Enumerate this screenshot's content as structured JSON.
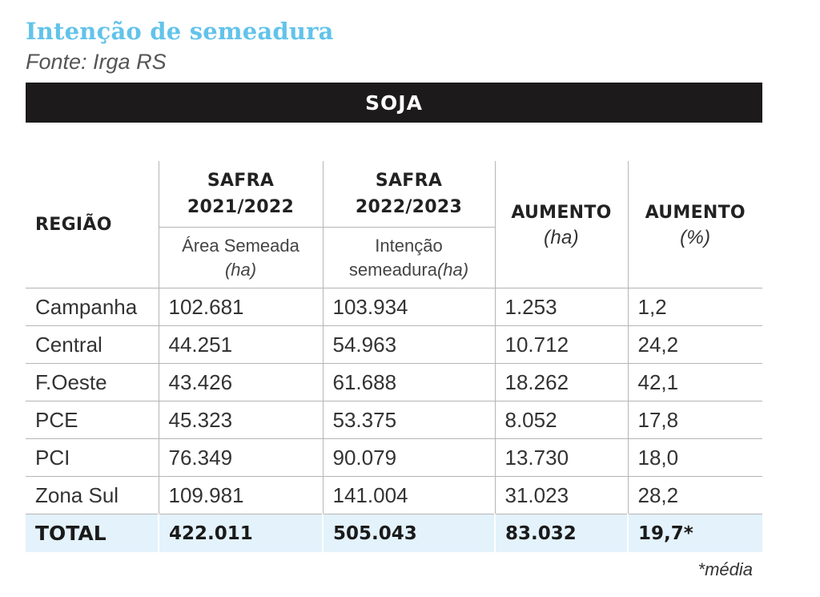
{
  "title": "Intenção de semeadura",
  "source": "Fonte: Irga RS",
  "banner": "SOJA",
  "header": {
    "regiao": "REGIÃO",
    "safra1": [
      "SAFRA",
      "2021/2022"
    ],
    "safra1_sub": "Área Semeada",
    "safra1_sub_unit": "(ha)",
    "safra2": [
      "SAFRA",
      "2022/2023"
    ],
    "safra2_sub": [
      "Intenção",
      "semeadura"
    ],
    "safra2_sub_unit": "(ha)",
    "aumento_ha": "AUMENTO",
    "aumento_ha_unit": "(ha)",
    "aumento_pct": "AUMENTO",
    "aumento_pct_unit": "(%)"
  },
  "rows": [
    [
      "Campanha",
      "102.681",
      "103.934",
      "1.253",
      "1,2"
    ],
    [
      "Central",
      "44.251",
      "54.963",
      "10.712",
      "24,2"
    ],
    [
      "F.Oeste",
      "43.426",
      "61.688",
      "18.262",
      "42,1"
    ],
    [
      "PCE",
      "45.323",
      "53.375",
      "8.052",
      "17,8"
    ],
    [
      "PCI",
      "76.349",
      "90.079",
      "13.730",
      "18,0"
    ],
    [
      "Zona Sul",
      "109.981",
      "141.004",
      "31.023",
      "28,2"
    ]
  ],
  "total": [
    "TOTAL",
    "422.011",
    "505.043",
    "83.032",
    "19,7*"
  ],
  "footnote": "*média",
  "colors": {
    "title": "#62c3ea",
    "banner_bg": "#1c1a1b",
    "total_bg": "#e3f2fb"
  }
}
